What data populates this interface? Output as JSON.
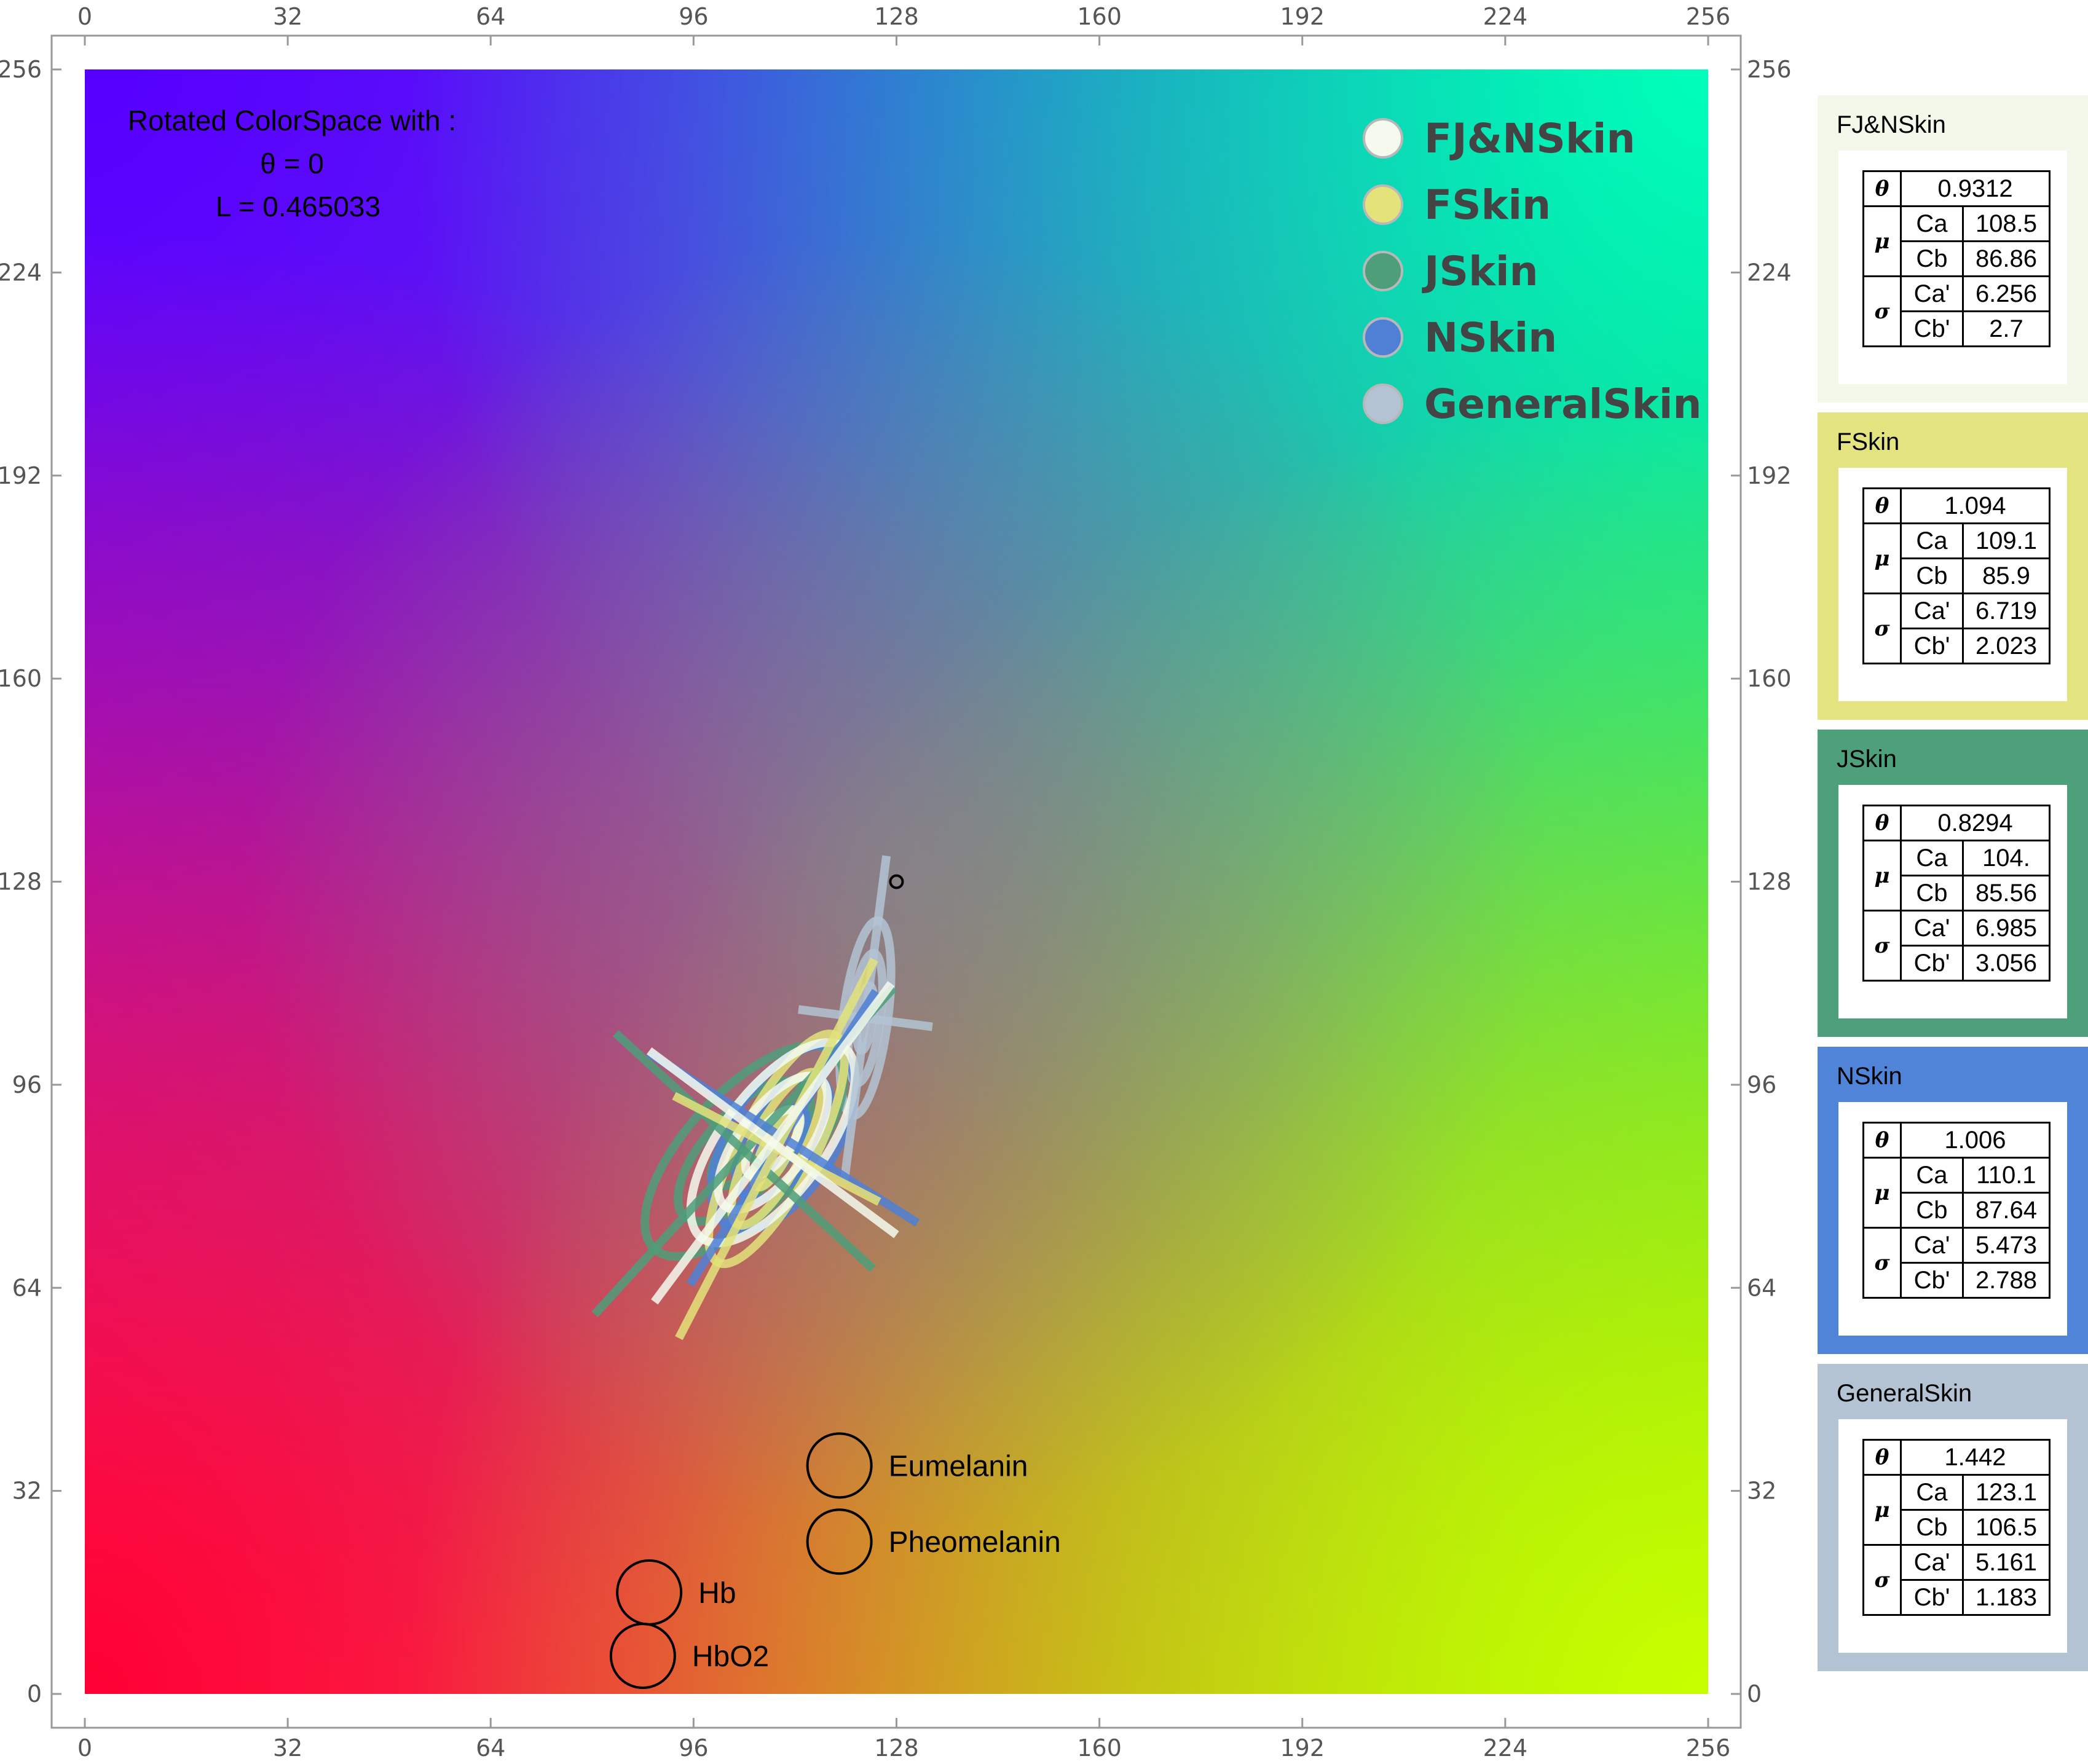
{
  "chart_data": {
    "type": "scatter",
    "title": "",
    "xlabel": "",
    "ylabel": "",
    "xlim": [
      0,
      256
    ],
    "ylim": [
      0,
      256
    ],
    "x_ticks": [
      "0",
      "32",
      "64",
      "96",
      "128",
      "160",
      "192",
      "224",
      "256"
    ],
    "y_ticks": [
      "0",
      "32",
      "64",
      "96",
      "128",
      "160",
      "192",
      "224",
      "256"
    ],
    "grid": false,
    "background": "rotated color space gradient",
    "annotation": {
      "line1": "Rotated ColorSpace with :",
      "line2": "θ = 0",
      "line3": "L = 0.465033"
    },
    "legend": {
      "placement": "top-right",
      "entries": [
        {
          "name": "FJ&NSkin",
          "color": "#f4faee"
        },
        {
          "name": "FSkin",
          "color": "#e3e37a"
        },
        {
          "name": "JSkin",
          "color": "#4e9e7a"
        },
        {
          "name": "NSkin",
          "color": "#4f80d6"
        },
        {
          "name": "GeneralSkin",
          "color": "#b3c3d4"
        }
      ]
    },
    "series": [
      {
        "name": "FJ&NSkin",
        "color": "#f4faee",
        "theta": 0.9312,
        "mu": [
          108.5,
          86.86
        ],
        "sigma": [
          6.256,
          2.7
        ]
      },
      {
        "name": "FSkin",
        "color": "#e3e37a",
        "theta": 1.094,
        "mu": [
          109.1,
          85.9
        ],
        "sigma": [
          6.719,
          2.023
        ]
      },
      {
        "name": "JSkin",
        "color": "#4e9e7a",
        "theta": 0.8294,
        "mu": [
          104.0,
          85.56
        ],
        "sigma": [
          6.985,
          3.056
        ]
      },
      {
        "name": "NSkin",
        "color": "#4f80d6",
        "theta": 1.006,
        "mu": [
          110.1,
          87.64
        ],
        "sigma": [
          5.473,
          2.788
        ]
      },
      {
        "name": "GeneralSkin",
        "color": "#b3c3d4",
        "theta": 1.442,
        "mu": [
          123.1,
          106.5
        ],
        "sigma": [
          5.161,
          1.183
        ]
      }
    ],
    "marker_point": [
      128,
      128
    ],
    "pigments": [
      {
        "name": "Eumelanin",
        "x": 119,
        "y": 36
      },
      {
        "name": "Pheomelanin",
        "x": 119,
        "y": 24
      },
      {
        "name": "Hb",
        "x": 89,
        "y": 16
      },
      {
        "name": "HbO2",
        "x": 88,
        "y": 6
      }
    ]
  },
  "panels": [
    {
      "title": "FJ&NSkin",
      "bg": "#f3f9ea",
      "theta": "0.9312",
      "ca": "108.5",
      "cb": "86.86",
      "ca_s": "6.256",
      "cb_s": "2.7"
    },
    {
      "title": "FSkin",
      "bg": "#e3e380",
      "theta": "1.094",
      "ca": "109.1",
      "cb": "85.9",
      "ca_s": "6.719",
      "cb_s": "2.023"
    },
    {
      "title": "JSkin",
      "bg": "#4ea07b",
      "theta": "0.8294",
      "ca": "104.",
      "cb": "85.56",
      "ca_s": "6.985",
      "cb_s": "3.056"
    },
    {
      "title": "NSkin",
      "bg": "#4f84d8",
      "theta": "1.006",
      "ca": "110.1",
      "cb": "87.64",
      "ca_s": "5.473",
      "cb_s": "2.788"
    },
    {
      "title": "GeneralSkin",
      "bg": "#b3c3d4",
      "theta": "1.442",
      "ca": "123.1",
      "cb": "106.5",
      "ca_s": "5.161",
      "cb_s": "1.183"
    }
  ],
  "table_labels": {
    "theta": "θ",
    "mu": "μ",
    "sigma": "σ",
    "ca": "Ca",
    "cb": "Cb",
    "ca_s": "Ca'",
    "cb_s": "Cb'"
  }
}
